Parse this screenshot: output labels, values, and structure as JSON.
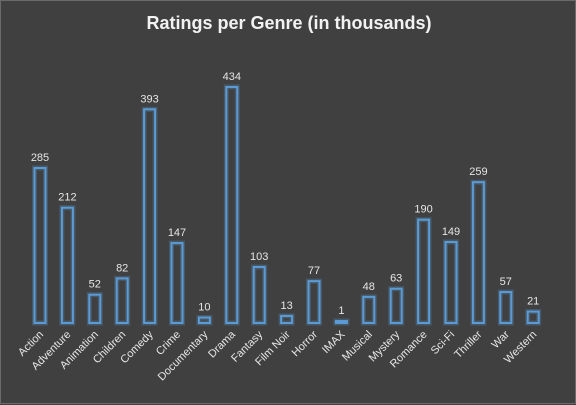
{
  "chart_data": {
    "type": "bar",
    "title": "Ratings per Genre (in thousands)",
    "categories": [
      "Action",
      "Adventure",
      "Animation",
      "Children",
      "Comedy",
      "Crime",
      "Documentary",
      "Drama",
      "Fantasy",
      "Film Noir",
      "Horror",
      "IMAX",
      "Musical",
      "Mystery",
      "Romance",
      "Sci-Fi",
      "Thriller",
      "War",
      "Western"
    ],
    "values": [
      285,
      212,
      52,
      82,
      393,
      147,
      10,
      434,
      103,
      13,
      77,
      1,
      48,
      63,
      190,
      149,
      259,
      57,
      21
    ],
    "data_labels": true,
    "grid": false,
    "legend": "none",
    "ylim": [
      0,
      434
    ]
  },
  "colors": {
    "background": "#404040",
    "bar_outline": "#5b9bd5",
    "text": "#e6e6e6"
  }
}
